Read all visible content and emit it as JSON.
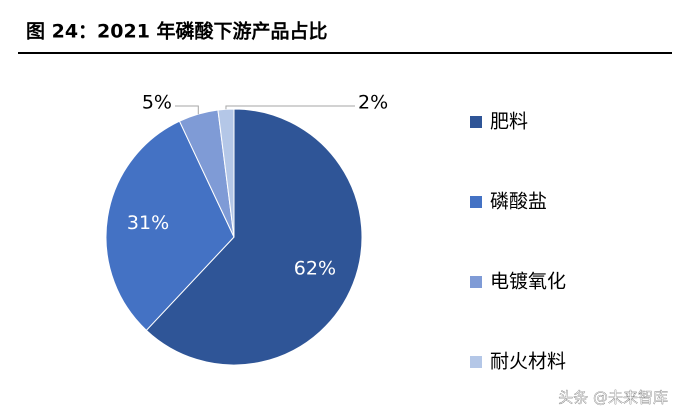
{
  "chart_data": {
    "type": "pie",
    "title": "图 24：2021 年磷酸下游产品占比",
    "categories": [
      "肥料",
      "磷酸盐",
      "电镀氧化",
      "耐火材料"
    ],
    "values": [
      62,
      31,
      5,
      2
    ],
    "value_labels": [
      "62%",
      "31%",
      "5%",
      "2%"
    ],
    "colors": [
      "#2f5597",
      "#4472c4",
      "#7f9bd6",
      "#b4c7e7"
    ],
    "legend": "right"
  },
  "watermark": "头条 @未来智库"
}
